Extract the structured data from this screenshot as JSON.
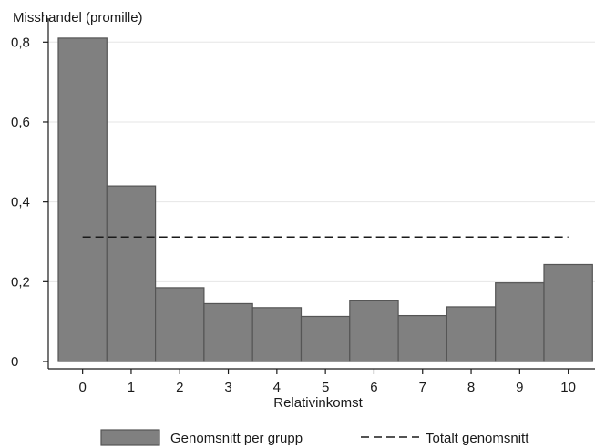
{
  "chart_data": {
    "type": "bar",
    "title": "",
    "ylabel": "Misshandel (promille)",
    "xlabel": "Relativinkomst",
    "categories": [
      "0",
      "1",
      "2",
      "3",
      "4",
      "5",
      "6",
      "7",
      "8",
      "9",
      "10"
    ],
    "series": [
      {
        "name": "Genomsnitt per grupp",
        "values": [
          0.81,
          0.44,
          0.185,
          0.145,
          0.135,
          0.113,
          0.152,
          0.115,
          0.137,
          0.197,
          0.243
        ]
      }
    ],
    "reference_line": {
      "name": "Totalt genomsnitt",
      "value": 0.312,
      "style": "dashed"
    },
    "ylim": [
      0,
      0.86
    ],
    "yticks": [
      0,
      0.2,
      0.4,
      0.6,
      0.8
    ],
    "ytick_labels": [
      "0",
      "0,2",
      "0,4",
      "0,6",
      "0,8"
    ],
    "grid": true,
    "legend_position": "bottom",
    "colors": {
      "bar_fill": "#808080",
      "bar_stroke": "#555555",
      "grid": "#e6e6e6",
      "dash_line": "#1a1a1a"
    }
  }
}
